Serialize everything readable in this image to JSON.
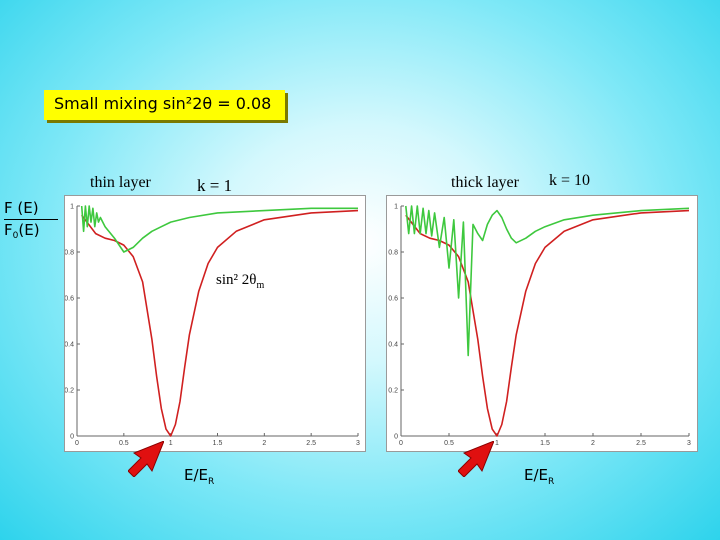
{
  "slide": {
    "title": "Small mixing  sin²2θ = 0.08",
    "thin_label": "thin layer",
    "thin_k": "k = 1",
    "thick_label": "thick layer",
    "thick_k": "k = 10",
    "ratio_num": "F (E)",
    "ratio_den_main": "F",
    "ratio_den_sub": "0",
    "ratio_den_tail": "(E)",
    "annotation_main": "sin² 2θ",
    "annotation_sub": "m",
    "xlabel_main": "E/E",
    "xlabel_sub": "R",
    "colors": {
      "background": "#2ed3ec",
      "titlebox": "#ffff00",
      "red": "#d02020",
      "green": "#3ec83e",
      "arrow": "#e01010"
    }
  },
  "chart_data": [
    {
      "type": "line",
      "name": "thin layer",
      "xlim": [
        0,
        3
      ],
      "ylim": [
        0,
        1
      ],
      "xticks": [
        "0",
        "0.5",
        "1",
        "1.5",
        "2",
        "2.5",
        "3"
      ],
      "yticks": [
        "0",
        "0.2",
        "0.4",
        "0.6",
        "0.8",
        "1"
      ],
      "grid": false,
      "series": [
        {
          "color": "red",
          "x": [
            0.05,
            0.2,
            0.3,
            0.4,
            0.5,
            0.6,
            0.7,
            0.8,
            0.85,
            0.9,
            0.95,
            1.0,
            1.05,
            1.1,
            1.15,
            1.2,
            1.3,
            1.4,
            1.5,
            1.7,
            2.0,
            2.5,
            3.0
          ],
          "y": [
            0.96,
            0.88,
            0.86,
            0.85,
            0.83,
            0.78,
            0.67,
            0.42,
            0.26,
            0.12,
            0.03,
            0.0,
            0.05,
            0.15,
            0.3,
            0.44,
            0.63,
            0.75,
            0.82,
            0.89,
            0.94,
            0.97,
            0.98
          ]
        },
        {
          "color": "green",
          "x": [
            0.05,
            0.07,
            0.09,
            0.11,
            0.13,
            0.15,
            0.17,
            0.19,
            0.21,
            0.23,
            0.25,
            0.3,
            0.4,
            0.5,
            0.6,
            0.7,
            0.8,
            0.9,
            1.0,
            1.2,
            1.5,
            2.0,
            2.5,
            3.0
          ],
          "y": [
            1.0,
            0.89,
            1.0,
            0.91,
            1.0,
            0.93,
            0.99,
            0.91,
            0.97,
            0.93,
            0.95,
            0.91,
            0.86,
            0.8,
            0.82,
            0.86,
            0.89,
            0.91,
            0.93,
            0.95,
            0.97,
            0.98,
            0.99,
            0.99
          ]
        }
      ]
    },
    {
      "type": "line",
      "name": "thick layer",
      "xlim": [
        0,
        3
      ],
      "ylim": [
        0,
        1
      ],
      "xticks": [
        "0",
        "0.5",
        "1",
        "1.5",
        "2",
        "2.5",
        "3"
      ],
      "yticks": [
        "0",
        "0.2",
        "0.4",
        "0.6",
        "0.8",
        "1"
      ],
      "grid": false,
      "series": [
        {
          "color": "red",
          "x": [
            0.05,
            0.2,
            0.3,
            0.4,
            0.5,
            0.6,
            0.7,
            0.8,
            0.85,
            0.9,
            0.95,
            1.0,
            1.05,
            1.1,
            1.15,
            1.2,
            1.3,
            1.4,
            1.5,
            1.7,
            2.0,
            2.5,
            3.0
          ],
          "y": [
            0.96,
            0.88,
            0.86,
            0.85,
            0.83,
            0.78,
            0.67,
            0.42,
            0.26,
            0.12,
            0.03,
            0.0,
            0.05,
            0.15,
            0.3,
            0.44,
            0.63,
            0.75,
            0.82,
            0.89,
            0.94,
            0.97,
            0.98
          ]
        },
        {
          "color": "green",
          "x": [
            0.05,
            0.08,
            0.11,
            0.14,
            0.17,
            0.2,
            0.23,
            0.26,
            0.29,
            0.32,
            0.35,
            0.4,
            0.45,
            0.5,
            0.55,
            0.6,
            0.65,
            0.7,
            0.75,
            0.8,
            0.85,
            0.9,
            0.95,
            1.0,
            1.05,
            1.1,
            1.15,
            1.2,
            1.3,
            1.4,
            1.5,
            1.7,
            2.0,
            2.5,
            3.0
          ],
          "y": [
            1.0,
            0.88,
            1.0,
            0.88,
            1.0,
            0.88,
            0.99,
            0.88,
            0.98,
            0.87,
            0.97,
            0.82,
            0.95,
            0.73,
            0.94,
            0.6,
            0.93,
            0.35,
            0.92,
            0.88,
            0.85,
            0.92,
            0.96,
            0.98,
            0.95,
            0.9,
            0.86,
            0.84,
            0.86,
            0.89,
            0.91,
            0.94,
            0.96,
            0.98,
            0.99
          ]
        }
      ]
    }
  ]
}
